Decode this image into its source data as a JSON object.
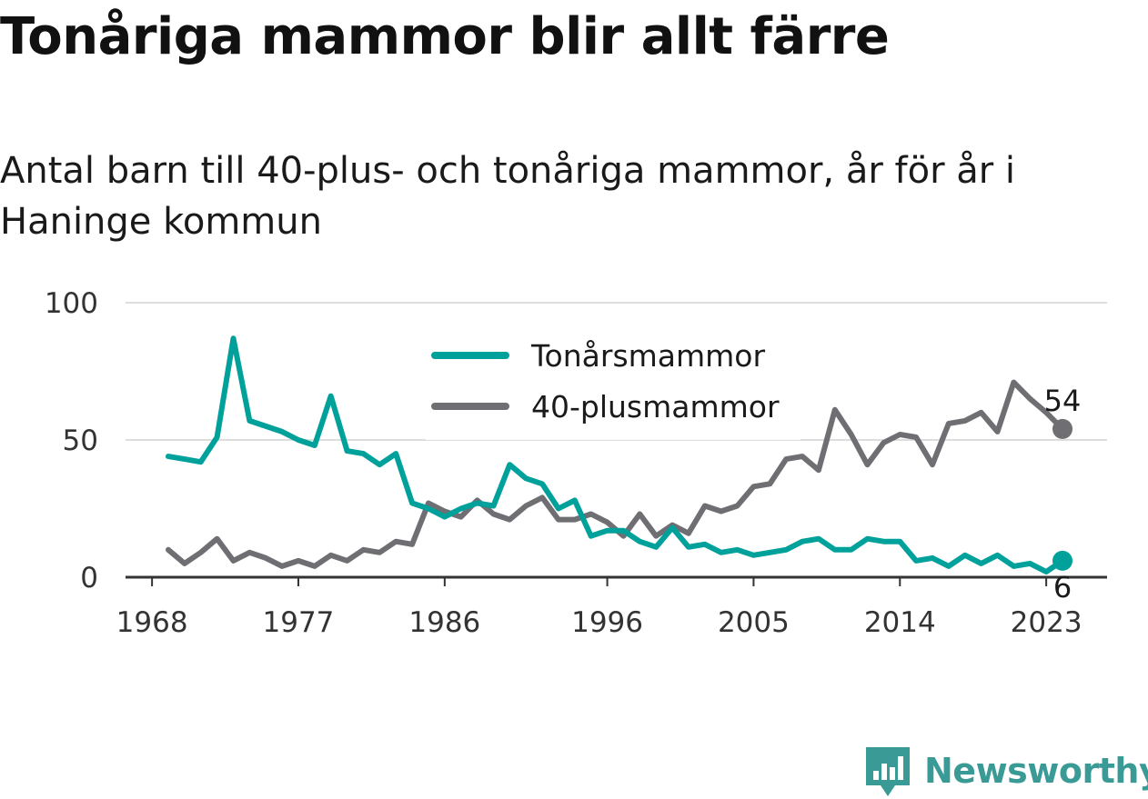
{
  "header": {
    "title": "Tonåriga mammor blir allt färre",
    "subtitle": "Antal barn till 40-plus- och tonåriga mammor, år för år i Haninge kommun"
  },
  "brand": {
    "name": "Newsworthy"
  },
  "chart_data": {
    "type": "line",
    "x": [
      1969,
      1970,
      1971,
      1972,
      1973,
      1974,
      1975,
      1976,
      1977,
      1978,
      1979,
      1980,
      1981,
      1982,
      1983,
      1984,
      1985,
      1986,
      1987,
      1988,
      1989,
      1990,
      1991,
      1992,
      1993,
      1994,
      1995,
      1996,
      1997,
      1998,
      1999,
      2000,
      2001,
      2002,
      2003,
      2004,
      2005,
      2006,
      2007,
      2008,
      2009,
      2010,
      2011,
      2012,
      2013,
      2014,
      2015,
      2016,
      2017,
      2018,
      2019,
      2020,
      2021,
      2022,
      2023,
      2024
    ],
    "series": [
      {
        "name": "Tonårsmammor",
        "color": "#00a19a",
        "values": [
          44,
          43,
          42,
          51,
          87,
          57,
          55,
          53,
          50,
          48,
          66,
          46,
          45,
          41,
          45,
          27,
          25,
          22,
          25,
          27,
          26,
          41,
          36,
          34,
          25,
          28,
          15,
          17,
          17,
          13,
          11,
          18,
          11,
          12,
          9,
          10,
          8,
          9,
          10,
          13,
          14,
          10,
          10,
          14,
          13,
          13,
          6,
          7,
          4,
          8,
          5,
          8,
          4,
          5,
          2,
          6
        ]
      },
      {
        "name": "40-plusmammor",
        "color": "#6e6e73",
        "values": [
          10,
          5,
          9,
          14,
          6,
          9,
          7,
          4,
          6,
          4,
          8,
          6,
          10,
          9,
          13,
          12,
          27,
          24,
          22,
          28,
          23,
          21,
          26,
          29,
          21,
          21,
          23,
          20,
          15,
          23,
          15,
          19,
          16,
          26,
          24,
          26,
          33,
          34,
          43,
          44,
          39,
          61,
          52,
          41,
          49,
          52,
          51,
          41,
          56,
          57,
          60,
          53,
          71,
          65,
          60,
          54
        ]
      }
    ],
    "x_ticks": [
      "1968",
      "1977",
      "1986",
      "1996",
      "2005",
      "2014",
      "2023"
    ],
    "y_ticks": [
      "0",
      "50",
      "100"
    ],
    "ylim": [
      0,
      100
    ],
    "xlim": [
      1968,
      2026
    ],
    "end_labels": [
      {
        "series": "40-plusmammor",
        "label": "54"
      },
      {
        "series": "Tonårsmammor",
        "label": "6"
      }
    ],
    "legend_position": "top-center",
    "grid": true
  }
}
